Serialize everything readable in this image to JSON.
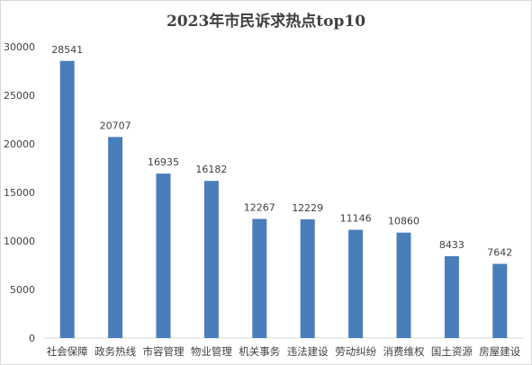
{
  "chart_data": {
    "type": "bar",
    "title": "2023年市民诉求热点top10",
    "xlabel": "",
    "ylabel": "",
    "categories": [
      "社会保障",
      "政务热线",
      "市容管理",
      "物业管理",
      "机关事务",
      "违法建设",
      "劳动纠纷",
      "消费维权",
      "国土资源",
      "房屋建设"
    ],
    "values": [
      28541,
      20707,
      16935,
      16182,
      12267,
      12229,
      11146,
      10860,
      8433,
      7642
    ],
    "ylim": [
      0,
      30000
    ],
    "yticks": [
      0,
      5000,
      10000,
      15000,
      20000,
      25000,
      30000
    ],
    "grid": false,
    "legend": "none",
    "bar_color": "#4a7ebb"
  }
}
